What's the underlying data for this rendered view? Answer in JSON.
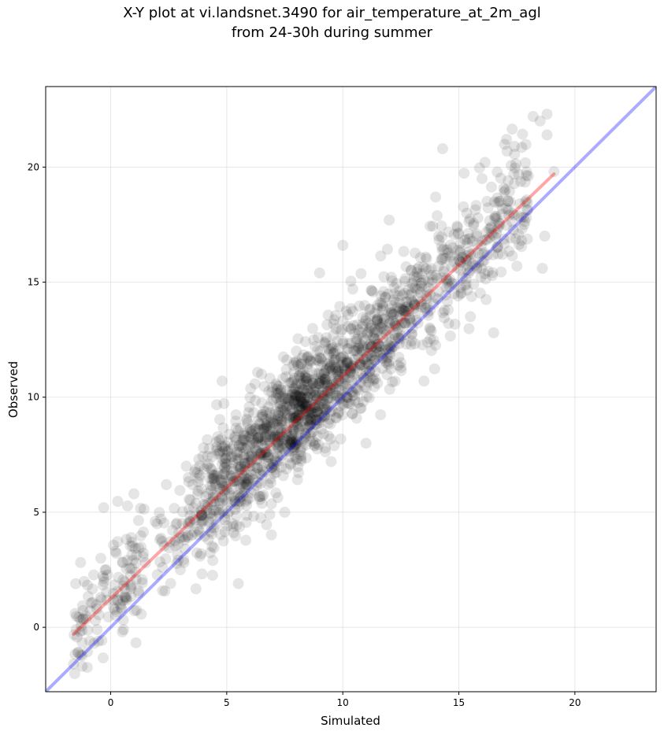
{
  "chart_data": {
    "type": "scatter",
    "title_line1": "X-Y plot at vi.landsnet.3490 for air_temperature_at_2m_agl",
    "title_line2": "from 24-30h during summer",
    "xlabel": "Simulated",
    "ylabel": "Observed",
    "xlim": [
      -2.8,
      23.5
    ],
    "ylim": [
      -2.8,
      23.5
    ],
    "x_ticks": [
      0,
      5,
      10,
      15,
      20
    ],
    "y_ticks": [
      0,
      5,
      10,
      15,
      20
    ],
    "grid": true,
    "point_color": "#000000",
    "point_alpha": 0.1,
    "regression_line": {
      "color": "#ff0000",
      "x": [
        -1.6,
        19.1
      ],
      "y": [
        -0.3,
        19.7
      ]
    },
    "identity_line": {
      "color": "#0000ff",
      "x": [
        -2.8,
        23.5
      ],
      "y": [
        -2.8,
        23.5
      ]
    },
    "point_count": 1800,
    "points_sample": [
      [
        -1.6,
        -1.6
      ],
      [
        -1.3,
        -1.2
      ],
      [
        -0.9,
        -0.6
      ],
      [
        -0.6,
        0.8
      ],
      [
        -0.3,
        5.2
      ],
      [
        -0.2,
        2.5
      ],
      [
        0.2,
        3.3
      ],
      [
        0.5,
        -0.2
      ],
      [
        1.0,
        5.8
      ],
      [
        1.5,
        2.8
      ],
      [
        2.0,
        4.5
      ],
      [
        2.4,
        6.2
      ],
      [
        3.0,
        2.5
      ],
      [
        3.5,
        4.0
      ],
      [
        4.0,
        7.8
      ],
      [
        4.4,
        2.9
      ],
      [
        4.8,
        10.7
      ],
      [
        5.0,
        6.0
      ],
      [
        5.5,
        1.9
      ],
      [
        6.0,
        7.0
      ],
      [
        6.5,
        11.0
      ],
      [
        7.0,
        8.2
      ],
      [
        7.5,
        5.0
      ],
      [
        8.0,
        12.0
      ],
      [
        8.5,
        9.0
      ],
      [
        9.0,
        15.4
      ],
      [
        9.5,
        7.2
      ],
      [
        10.0,
        16.6
      ],
      [
        10.5,
        12.0
      ],
      [
        11.0,
        8.0
      ],
      [
        11.5,
        14.0
      ],
      [
        12.0,
        17.7
      ],
      [
        12.5,
        11.5
      ],
      [
        13.0,
        13.0
      ],
      [
        13.5,
        10.7
      ],
      [
        14.0,
        18.7
      ],
      [
        14.3,
        20.8
      ],
      [
        14.8,
        14.5
      ],
      [
        15.3,
        16.0
      ],
      [
        15.5,
        13.5
      ],
      [
        16.0,
        19.5
      ],
      [
        16.5,
        12.8
      ],
      [
        17.0,
        19.0
      ],
      [
        17.4,
        20.9
      ],
      [
        17.5,
        15.7
      ],
      [
        18.2,
        22.2
      ],
      [
        18.5,
        22.0
      ],
      [
        18.6,
        15.6
      ],
      [
        18.7,
        17.0
      ],
      [
        18.8,
        22.3
      ],
      [
        18.8,
        21.4
      ],
      [
        19.1,
        19.8
      ]
    ]
  }
}
